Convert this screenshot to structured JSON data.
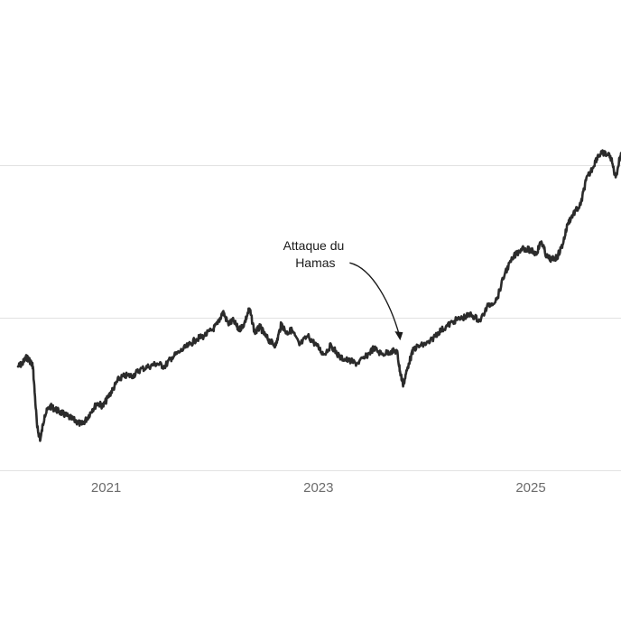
{
  "chart_data": {
    "type": "line",
    "title": "",
    "xlabel": "",
    "ylabel": "",
    "xlim": [
      2020.0,
      2025.85
    ],
    "ylim": [
      0,
      100
    ],
    "y_gridlines": [
      0,
      50,
      100
    ],
    "x_ticks": [
      {
        "value": 2021,
        "label": "2021"
      },
      {
        "value": 2023,
        "label": "2023"
      },
      {
        "value": 2025,
        "label": "2025"
      }
    ],
    "grid": "horizontal",
    "series": [
      {
        "color": "#2b2b2b",
        "x": [
          2020.17,
          2020.21,
          2020.25,
          2020.28,
          2020.31,
          2020.35,
          2020.38,
          2020.42,
          2020.47,
          2020.52,
          2020.57,
          2020.62,
          2020.67,
          2020.72,
          2020.77,
          2020.82,
          2020.87,
          2020.92,
          2020.97,
          2021.02,
          2021.07,
          2021.12,
          2021.18,
          2021.25,
          2021.32,
          2021.4,
          2021.48,
          2021.55,
          2021.62,
          2021.7,
          2021.78,
          2021.85,
          2021.92,
          2022.0,
          2022.05,
          2022.1,
          2022.15,
          2022.2,
          2022.25,
          2022.3,
          2022.35,
          2022.4,
          2022.45,
          2022.5,
          2022.55,
          2022.6,
          2022.65,
          2022.7,
          2022.75,
          2022.82,
          2022.9,
          2022.98,
          2023.05,
          2023.12,
          2023.2,
          2023.28,
          2023.36,
          2023.44,
          2023.52,
          2023.6,
          2023.68,
          2023.74,
          2023.77,
          2023.8,
          2023.85,
          2023.9,
          2023.98,
          2024.05,
          2024.12,
          2024.2,
          2024.28,
          2024.36,
          2024.44,
          2024.52,
          2024.6,
          2024.68,
          2024.76,
          2024.84,
          2024.92,
          2025.0,
          2025.05,
          2025.1,
          2025.15,
          2025.2,
          2025.25,
          2025.3,
          2025.35,
          2025.4,
          2025.47,
          2025.52,
          2025.58,
          2025.63,
          2025.68,
          2025.75,
          2025.8,
          2025.85
        ],
        "y": [
          34,
          35,
          37,
          36,
          34,
          14,
          10,
          18,
          21,
          20,
          19,
          18,
          17,
          16,
          15,
          17,
          20,
          22,
          21,
          24,
          27,
          30,
          31,
          31,
          33,
          34,
          35,
          34,
          37,
          39,
          41,
          43,
          44,
          46,
          48,
          52,
          48,
          49,
          46,
          48,
          53,
          45,
          47,
          44,
          42,
          41,
          48,
          45,
          46,
          41,
          44,
          41,
          38,
          41,
          37,
          36,
          35,
          37,
          40,
          38,
          39,
          39,
          32,
          28,
          35,
          40,
          41,
          42,
          45,
          47,
          49,
          50,
          51,
          49,
          54,
          56,
          65,
          70,
          73,
          72,
          71,
          75,
          70,
          69,
          70,
          74,
          81,
          84,
          87,
          95,
          99,
          103,
          104,
          103,
          96,
          104
        ]
      }
    ],
    "annotations": [
      {
        "lines": [
          "Attaque du",
          "Hamas"
        ],
        "x": 2023.77,
        "y": 39
      }
    ]
  }
}
